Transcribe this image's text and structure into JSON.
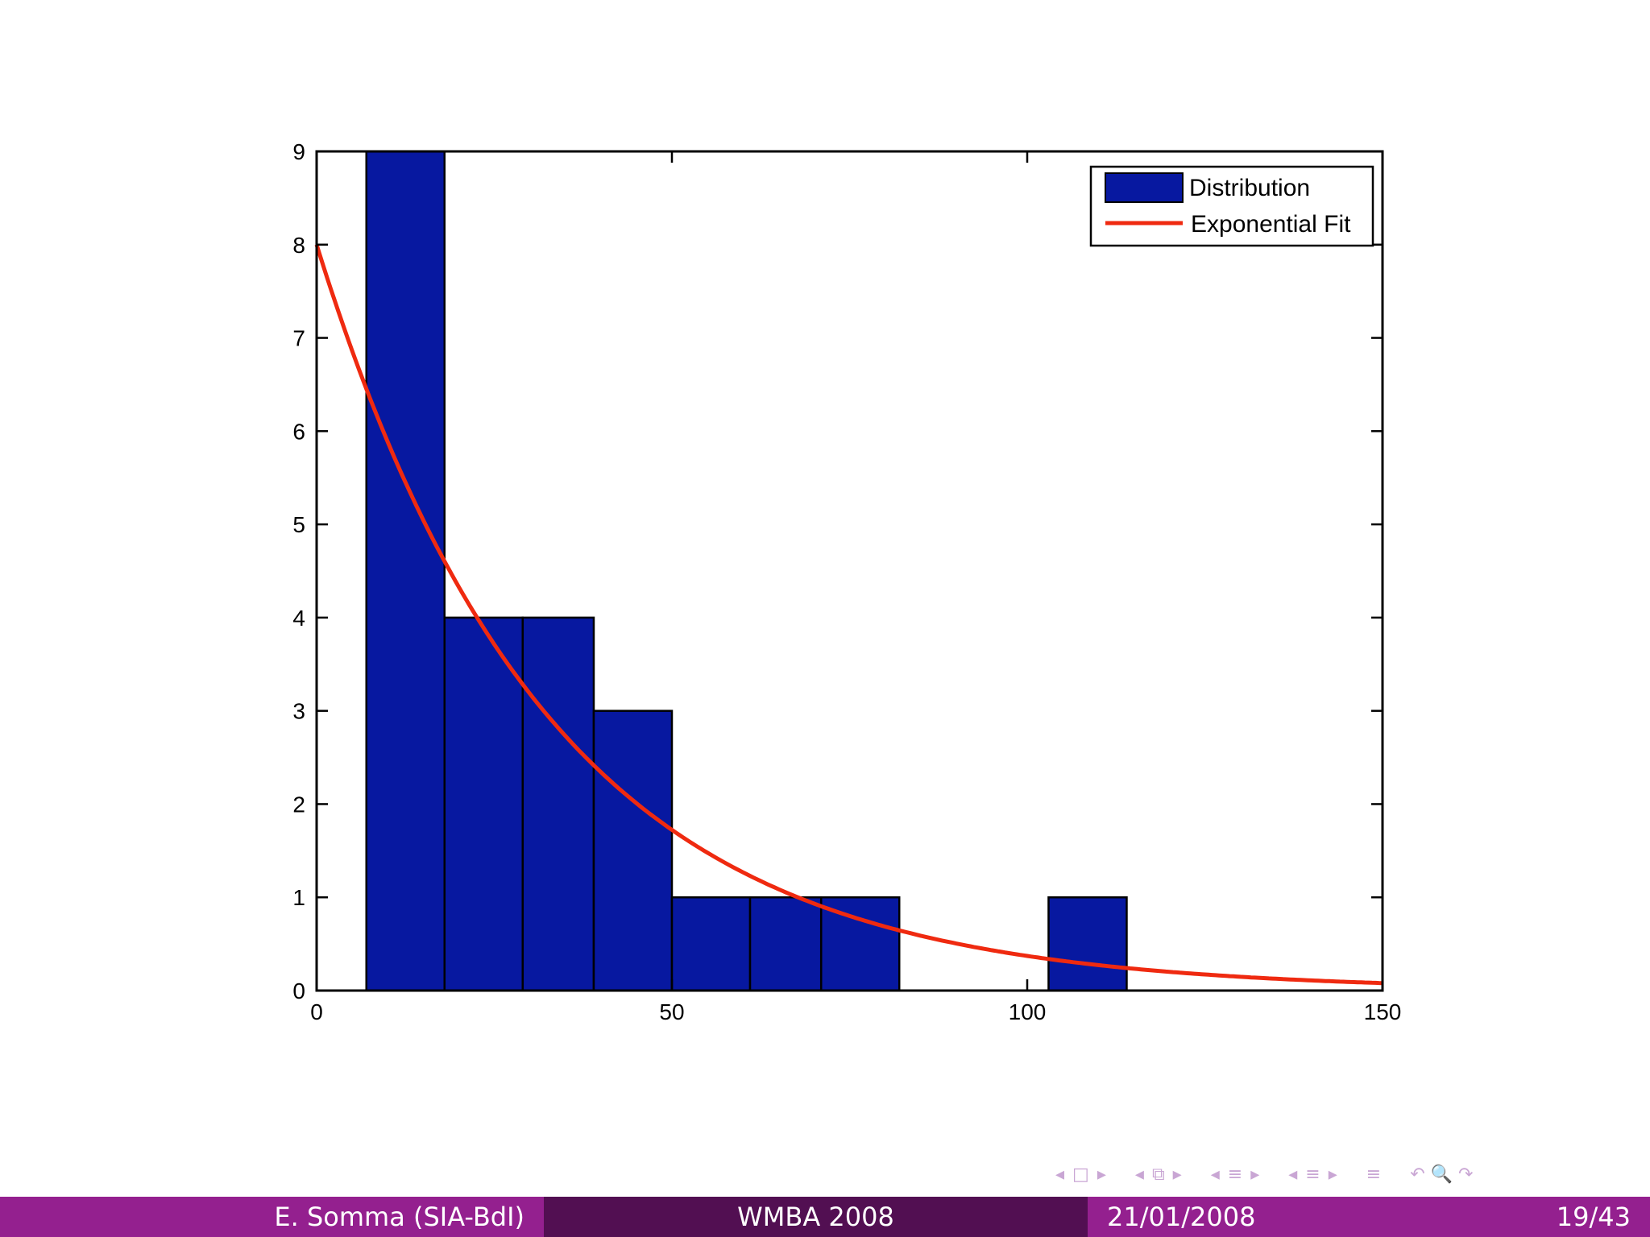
{
  "chart_data": {
    "type": "bar",
    "bins": [
      {
        "x0": 7,
        "x1": 18,
        "count": 9
      },
      {
        "x0": 18,
        "x1": 29,
        "count": 4
      },
      {
        "x0": 29,
        "x1": 39,
        "count": 4
      },
      {
        "x0": 39,
        "x1": 50,
        "count": 3
      },
      {
        "x0": 50,
        "x1": 61,
        "count": 1
      },
      {
        "x0": 61,
        "x1": 71,
        "count": 1
      },
      {
        "x0": 71,
        "x1": 82,
        "count": 1
      },
      {
        "x0": 103,
        "x1": 114,
        "count": 1
      }
    ],
    "fit": {
      "type": "exponential",
      "a": 8,
      "rate": 0.0307
    },
    "series": [
      {
        "name": "Distribution",
        "color": "#0718a0"
      },
      {
        "name": "Exponential Fit",
        "color": "#ef2a10"
      }
    ],
    "xlim": [
      0,
      150
    ],
    "ylim": [
      0,
      9
    ],
    "xticks": [
      0,
      50,
      100,
      150
    ],
    "yticks": [
      0,
      1,
      2,
      3,
      4,
      5,
      6,
      7,
      8,
      9
    ],
    "legend_position": "top-right",
    "grid": false
  },
  "navigation": {
    "arrow_left": "◂",
    "arrow_right": "▸",
    "frame_icon": "□",
    "subsection_icon": "⧉",
    "section_icon": "≡",
    "align_icon": "≡",
    "search_icon": "↶ 🔍 ↷"
  },
  "footer": {
    "author": "E. Somma (SIA-BdI)",
    "title": "WMBA 2008",
    "date": "21/01/2008",
    "page": "19/43"
  }
}
